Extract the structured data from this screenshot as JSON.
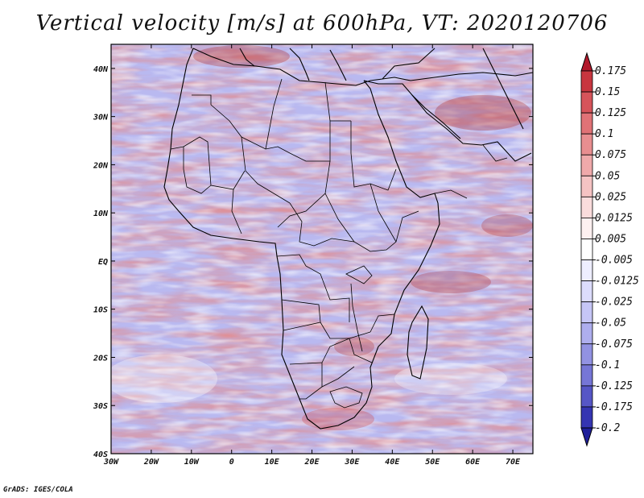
{
  "title": "Vertical velocity [m/s] at 600hPa, VT: 2020120706",
  "credit": "GrADS: IGES/COLA",
  "map": {
    "lon_labels": [
      "30W",
      "20W",
      "10W",
      "0",
      "10E",
      "20E",
      "30E",
      "40E",
      "50E",
      "60E",
      "70E"
    ],
    "lat_labels": [
      "40N",
      "30N",
      "20N",
      "10N",
      "EQ",
      "10S",
      "20S",
      "30S",
      "40S"
    ]
  },
  "colorbar": {
    "levels": [
      "0.175",
      "0.15",
      "0.125",
      "0.1",
      "0.075",
      "0.05",
      "0.025",
      "0.0125",
      "0.005",
      "-0.005",
      "-0.0125",
      "-0.025",
      "-0.05",
      "-0.075",
      "-0.1",
      "-0.125",
      "-0.175",
      "-0.2"
    ],
    "colors": [
      "#b2182b",
      "#c8363f",
      "#d6545a",
      "#e07276",
      "#e88e90",
      "#efa9aa",
      "#f5c3c3",
      "#fadcdc",
      "#fdf0f0",
      "#ffffff",
      "#eeeeff",
      "#dcdcfc",
      "#c6c6f6",
      "#aeaeee",
      "#9292e2",
      "#7676d6",
      "#5656c6",
      "#3535b2",
      "#1f1f9a"
    ]
  }
}
